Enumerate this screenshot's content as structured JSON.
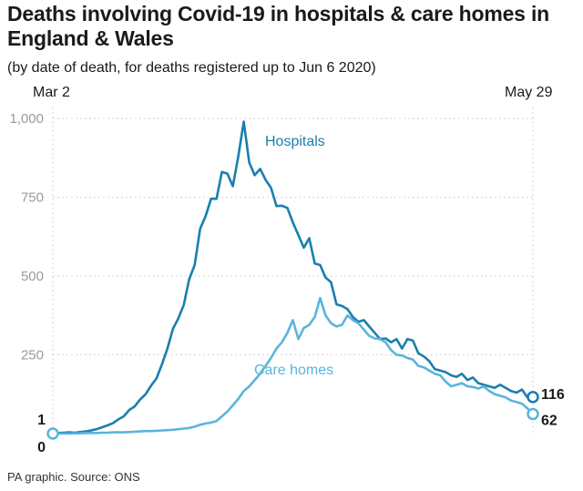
{
  "header": {
    "title": "Deaths involving Covid-19 in hospitals & care homes in England & Wales",
    "subtitle": "(by date of death, for deaths registered up to Jun 6 2020)",
    "date_start": "Mar 2",
    "date_end": "May 29"
  },
  "footer": {
    "source": "PA graphic. Source: ONS"
  },
  "colors": {
    "hospitals": "#1a7fae",
    "care_homes": "#5ab4dc",
    "grid": "#d6d6d6"
  },
  "chart_data": {
    "type": "line",
    "title": "Deaths involving Covid-19 in hospitals & care homes in England & Wales",
    "subtitle": "(by date of death, for deaths registered up to Jun 6 2020)",
    "x_start": "Mar 2",
    "x_end": "May 29",
    "ylim": [
      0,
      1000
    ],
    "yticks": [
      0,
      250,
      500,
      750,
      1000
    ],
    "ytick_labels": [
      "",
      "250",
      "500",
      "750",
      "1,000"
    ],
    "grid": "horizontal dashed",
    "legend": "inline labels",
    "start_labels": [
      {
        "label": "1",
        "series": "Hospitals"
      },
      {
        "label": "0",
        "series": "Care homes"
      }
    ],
    "series": [
      {
        "name": "Hospitals",
        "end_label": "116",
        "values": [
          1,
          2,
          3,
          4,
          3,
          5,
          7,
          10,
          14,
          20,
          26,
          33,
          45,
          55,
          75,
          86,
          108,
          125,
          152,
          175,
          220,
          270,
          332,
          365,
          408,
          490,
          535,
          650,
          690,
          745,
          745,
          830,
          825,
          785,
          880,
          990,
          860,
          820,
          840,
          805,
          780,
          722,
          723,
          716,
          670,
          630,
          590,
          620,
          540,
          535,
          495,
          480,
          410,
          405,
          395,
          370,
          355,
          360,
          340,
          320,
          300,
          302,
          290,
          300,
          270,
          300,
          295,
          255,
          245,
          230,
          205,
          200,
          195,
          185,
          180,
          190,
          170,
          178,
          160,
          155,
          150,
          145,
          155,
          145,
          135,
          130,
          140,
          115,
          116
        ]
      },
      {
        "name": "Care homes",
        "end_label": "62",
        "values": [
          0,
          0,
          0,
          0,
          1,
          1,
          2,
          2,
          2,
          3,
          3,
          4,
          4,
          4,
          5,
          6,
          7,
          8,
          8,
          9,
          10,
          11,
          12,
          14,
          16,
          18,
          22,
          28,
          32,
          35,
          40,
          55,
          70,
          90,
          110,
          135,
          150,
          170,
          190,
          215,
          240,
          270,
          290,
          320,
          360,
          300,
          335,
          345,
          370,
          430,
          375,
          350,
          340,
          345,
          375,
          360,
          350,
          330,
          310,
          302,
          300,
          290,
          265,
          250,
          248,
          240,
          235,
          215,
          210,
          200,
          190,
          185,
          165,
          150,
          155,
          160,
          150,
          148,
          143,
          150,
          135,
          125,
          120,
          115,
          105,
          100,
          95,
          80,
          62
        ]
      }
    ]
  }
}
